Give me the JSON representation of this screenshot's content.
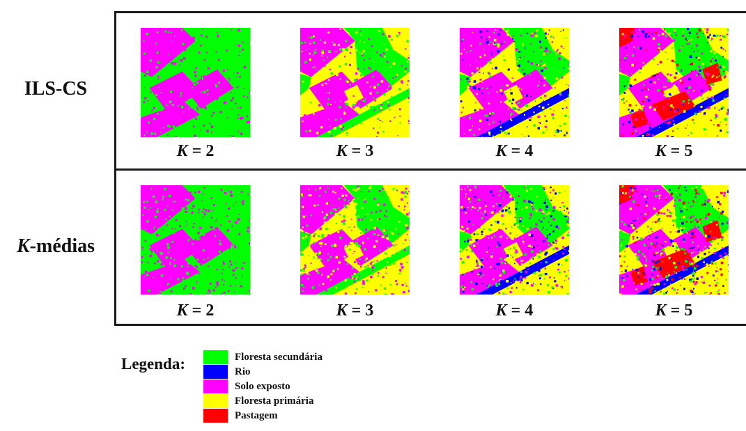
{
  "rows": [
    {
      "label": "ILS-CS"
    },
    {
      "label_italic": "K",
      "label_rest": "-médias"
    }
  ],
  "panels": [
    {
      "k_var": "K",
      "k_rest": " = 2",
      "classes": 2
    },
    {
      "k_var": "K",
      "k_rest": " = 3",
      "classes": 3
    },
    {
      "k_var": "K",
      "k_rest": " = 4",
      "classes": 4
    },
    {
      "k_var": "K",
      "k_rest": " = 5",
      "classes": 5
    }
  ],
  "legend": {
    "title": "Legenda:",
    "items": [
      {
        "label": "Floresta secundária",
        "color": "#00ff00"
      },
      {
        "label": "Rio",
        "color": "#0000ff"
      },
      {
        "label": "Solo exposto",
        "color": "#ff00ff"
      },
      {
        "label": "Floresta primária",
        "color": "#ffff00"
      },
      {
        "label": "Pastagem",
        "color": "#ff0000"
      }
    ]
  }
}
